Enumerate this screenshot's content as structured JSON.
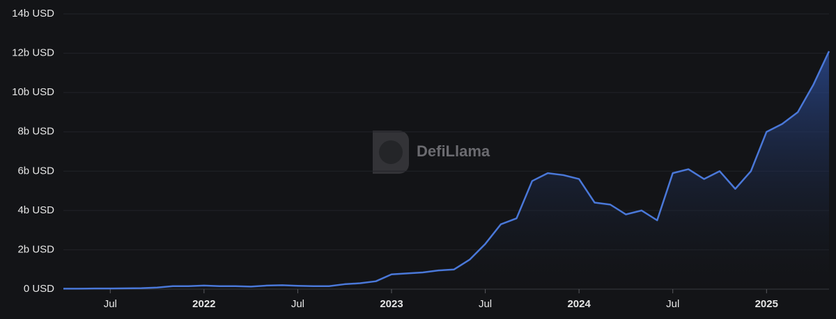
{
  "chart_data": {
    "type": "area",
    "watermark": "DefiLlama",
    "x": [
      "2021-04",
      "2021-05",
      "2021-06",
      "2021-07",
      "2021-08",
      "2021-09",
      "2021-10",
      "2021-11",
      "2021-12",
      "2022-01",
      "2022-02",
      "2022-03",
      "2022-04",
      "2022-05",
      "2022-06",
      "2022-07",
      "2022-08",
      "2022-09",
      "2022-10",
      "2022-11",
      "2022-12",
      "2023-01",
      "2023-02",
      "2023-03",
      "2023-04",
      "2023-05",
      "2023-06",
      "2023-07",
      "2023-08",
      "2023-09",
      "2023-10",
      "2023-11",
      "2023-12",
      "2024-01",
      "2024-02",
      "2024-03",
      "2024-04",
      "2024-05",
      "2024-06",
      "2024-07",
      "2024-08",
      "2024-09",
      "2024-10",
      "2024-11",
      "2024-12",
      "2025-01",
      "2025-02",
      "2025-03",
      "2025-04",
      "2025-05"
    ],
    "values": [
      0.02,
      0.02,
      0.03,
      0.03,
      0.04,
      0.05,
      0.08,
      0.15,
      0.15,
      0.18,
      0.15,
      0.15,
      0.13,
      0.18,
      0.2,
      0.17,
      0.15,
      0.15,
      0.25,
      0.3,
      0.4,
      0.75,
      0.8,
      0.85,
      0.95,
      1.0,
      1.5,
      2.3,
      3.3,
      3.6,
      5.5,
      5.9,
      5.8,
      5.6,
      4.4,
      4.3,
      3.8,
      4.0,
      3.5,
      5.9,
      6.1,
      5.6,
      6.0,
      5.1,
      6.0,
      8.0,
      8.4,
      9.0,
      10.4,
      12.1
    ],
    "color": "#4a78d9",
    "xlim": [
      "2021-04",
      "2025-05"
    ],
    "xticks": [
      {
        "value": "2021-07",
        "label": "Jul"
      },
      {
        "value": "2022-01",
        "label": "2022"
      },
      {
        "value": "2022-07",
        "label": "Jul"
      },
      {
        "value": "2023-01",
        "label": "2023"
      },
      {
        "value": "2023-07",
        "label": "Jul"
      },
      {
        "value": "2024-01",
        "label": "2024"
      },
      {
        "value": "2024-07",
        "label": "Jul"
      },
      {
        "value": "2025-01",
        "label": "2025"
      }
    ],
    "ylim": [
      0,
      14
    ],
    "yticks": [
      {
        "value": 0,
        "label": "0 USD"
      },
      {
        "value": 2,
        "label": "2b USD"
      },
      {
        "value": 4,
        "label": "4b USD"
      },
      {
        "value": 6,
        "label": "6b USD"
      },
      {
        "value": 8,
        "label": "8b USD"
      },
      {
        "value": 10,
        "label": "10b USD"
      },
      {
        "value": 12,
        "label": "12b USD"
      },
      {
        "value": 14,
        "label": "14b USD"
      }
    ],
    "grid": true
  }
}
